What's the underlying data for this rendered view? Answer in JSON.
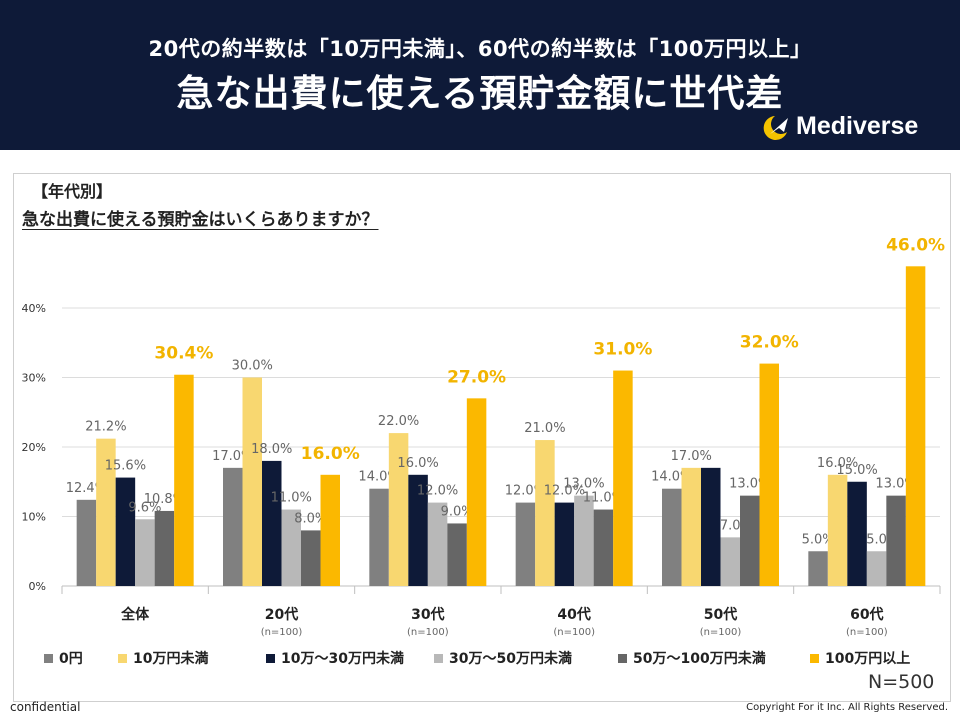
{
  "header": {
    "line1": "20代の約半数は「10万円未満」、60代の約半数は「100万円以上」",
    "line2": "急な出費に使える預貯金額に世代差",
    "logo_text": "Mediverse"
  },
  "section_label": "【年代別】",
  "question": "急な出費に使える預貯金はいくらありますか？",
  "sample_size": "N=500",
  "footer": {
    "confidential": "confidential",
    "copyright": "Copyright For it Inc. All Rights Reserved."
  },
  "chart_data": {
    "type": "bar",
    "title": "急な出費に使える預貯金はいくらありますか？",
    "categories": [
      "全体",
      "20代",
      "30代",
      "40代",
      "50代",
      "60代"
    ],
    "category_sublabels": [
      "",
      "(n=100)",
      "(n=100)",
      "(n=100)",
      "(n=100)",
      "(n=100)"
    ],
    "ylim": [
      0,
      46
    ],
    "yticks": [
      "0%",
      "10%",
      "20%",
      "30%",
      "40%"
    ],
    "ytick_values": [
      0,
      10,
      20,
      30,
      40
    ],
    "grid": true,
    "legend_placement": "bottom",
    "series": [
      {
        "name": "0円",
        "color": "#808080",
        "values": [
          12.4,
          17.0,
          14.0,
          12.0,
          14.0,
          5.0
        ],
        "labels": [
          "12.4%",
          "17.0%",
          "14.0%",
          "12.0%",
          "14.0%",
          "5.0%"
        ]
      },
      {
        "name": "10万円未満",
        "color": "#f8d770",
        "values": [
          21.2,
          30.0,
          22.0,
          21.0,
          17.0,
          16.0
        ],
        "labels": [
          "21.2%",
          "30.0%",
          "22.0%",
          "21.0%",
          "17.0%",
          "16.0%"
        ]
      },
      {
        "name": "10万～30万円未満",
        "color": "#0e1a38",
        "values": [
          15.6,
          18.0,
          16.0,
          12.0,
          17.0,
          15.0
        ],
        "labels": [
          "15.6%",
          "18.0%",
          "16.0%",
          "12.0%",
          "",
          "15.0%"
        ]
      },
      {
        "name": "30万～50万円未満",
        "color": "#b8b8b8",
        "values": [
          9.6,
          11.0,
          12.0,
          13.0,
          7.0,
          5.0
        ],
        "labels": [
          "9.6%",
          "11.0%",
          "12.0%",
          "13.0%",
          "7.0",
          "5.0"
        ]
      },
      {
        "name": "50万～100万円未満",
        "color": "#666666",
        "values": [
          10.8,
          8.0,
          9.0,
          11.0,
          13.0,
          13.0
        ],
        "labels": [
          "10.8%",
          "8.0%",
          "9.0%",
          "11.0%",
          "13.0%",
          "13.0%"
        ]
      },
      {
        "name": "100万円以上",
        "color": "#fbb800",
        "values": [
          30.4,
          16.0,
          27.0,
          31.0,
          32.0,
          46.0
        ],
        "labels": [
          "30.4%",
          "16.0%",
          "27.0%",
          "31.0%",
          "32.0%",
          "46.0%"
        ]
      }
    ]
  }
}
